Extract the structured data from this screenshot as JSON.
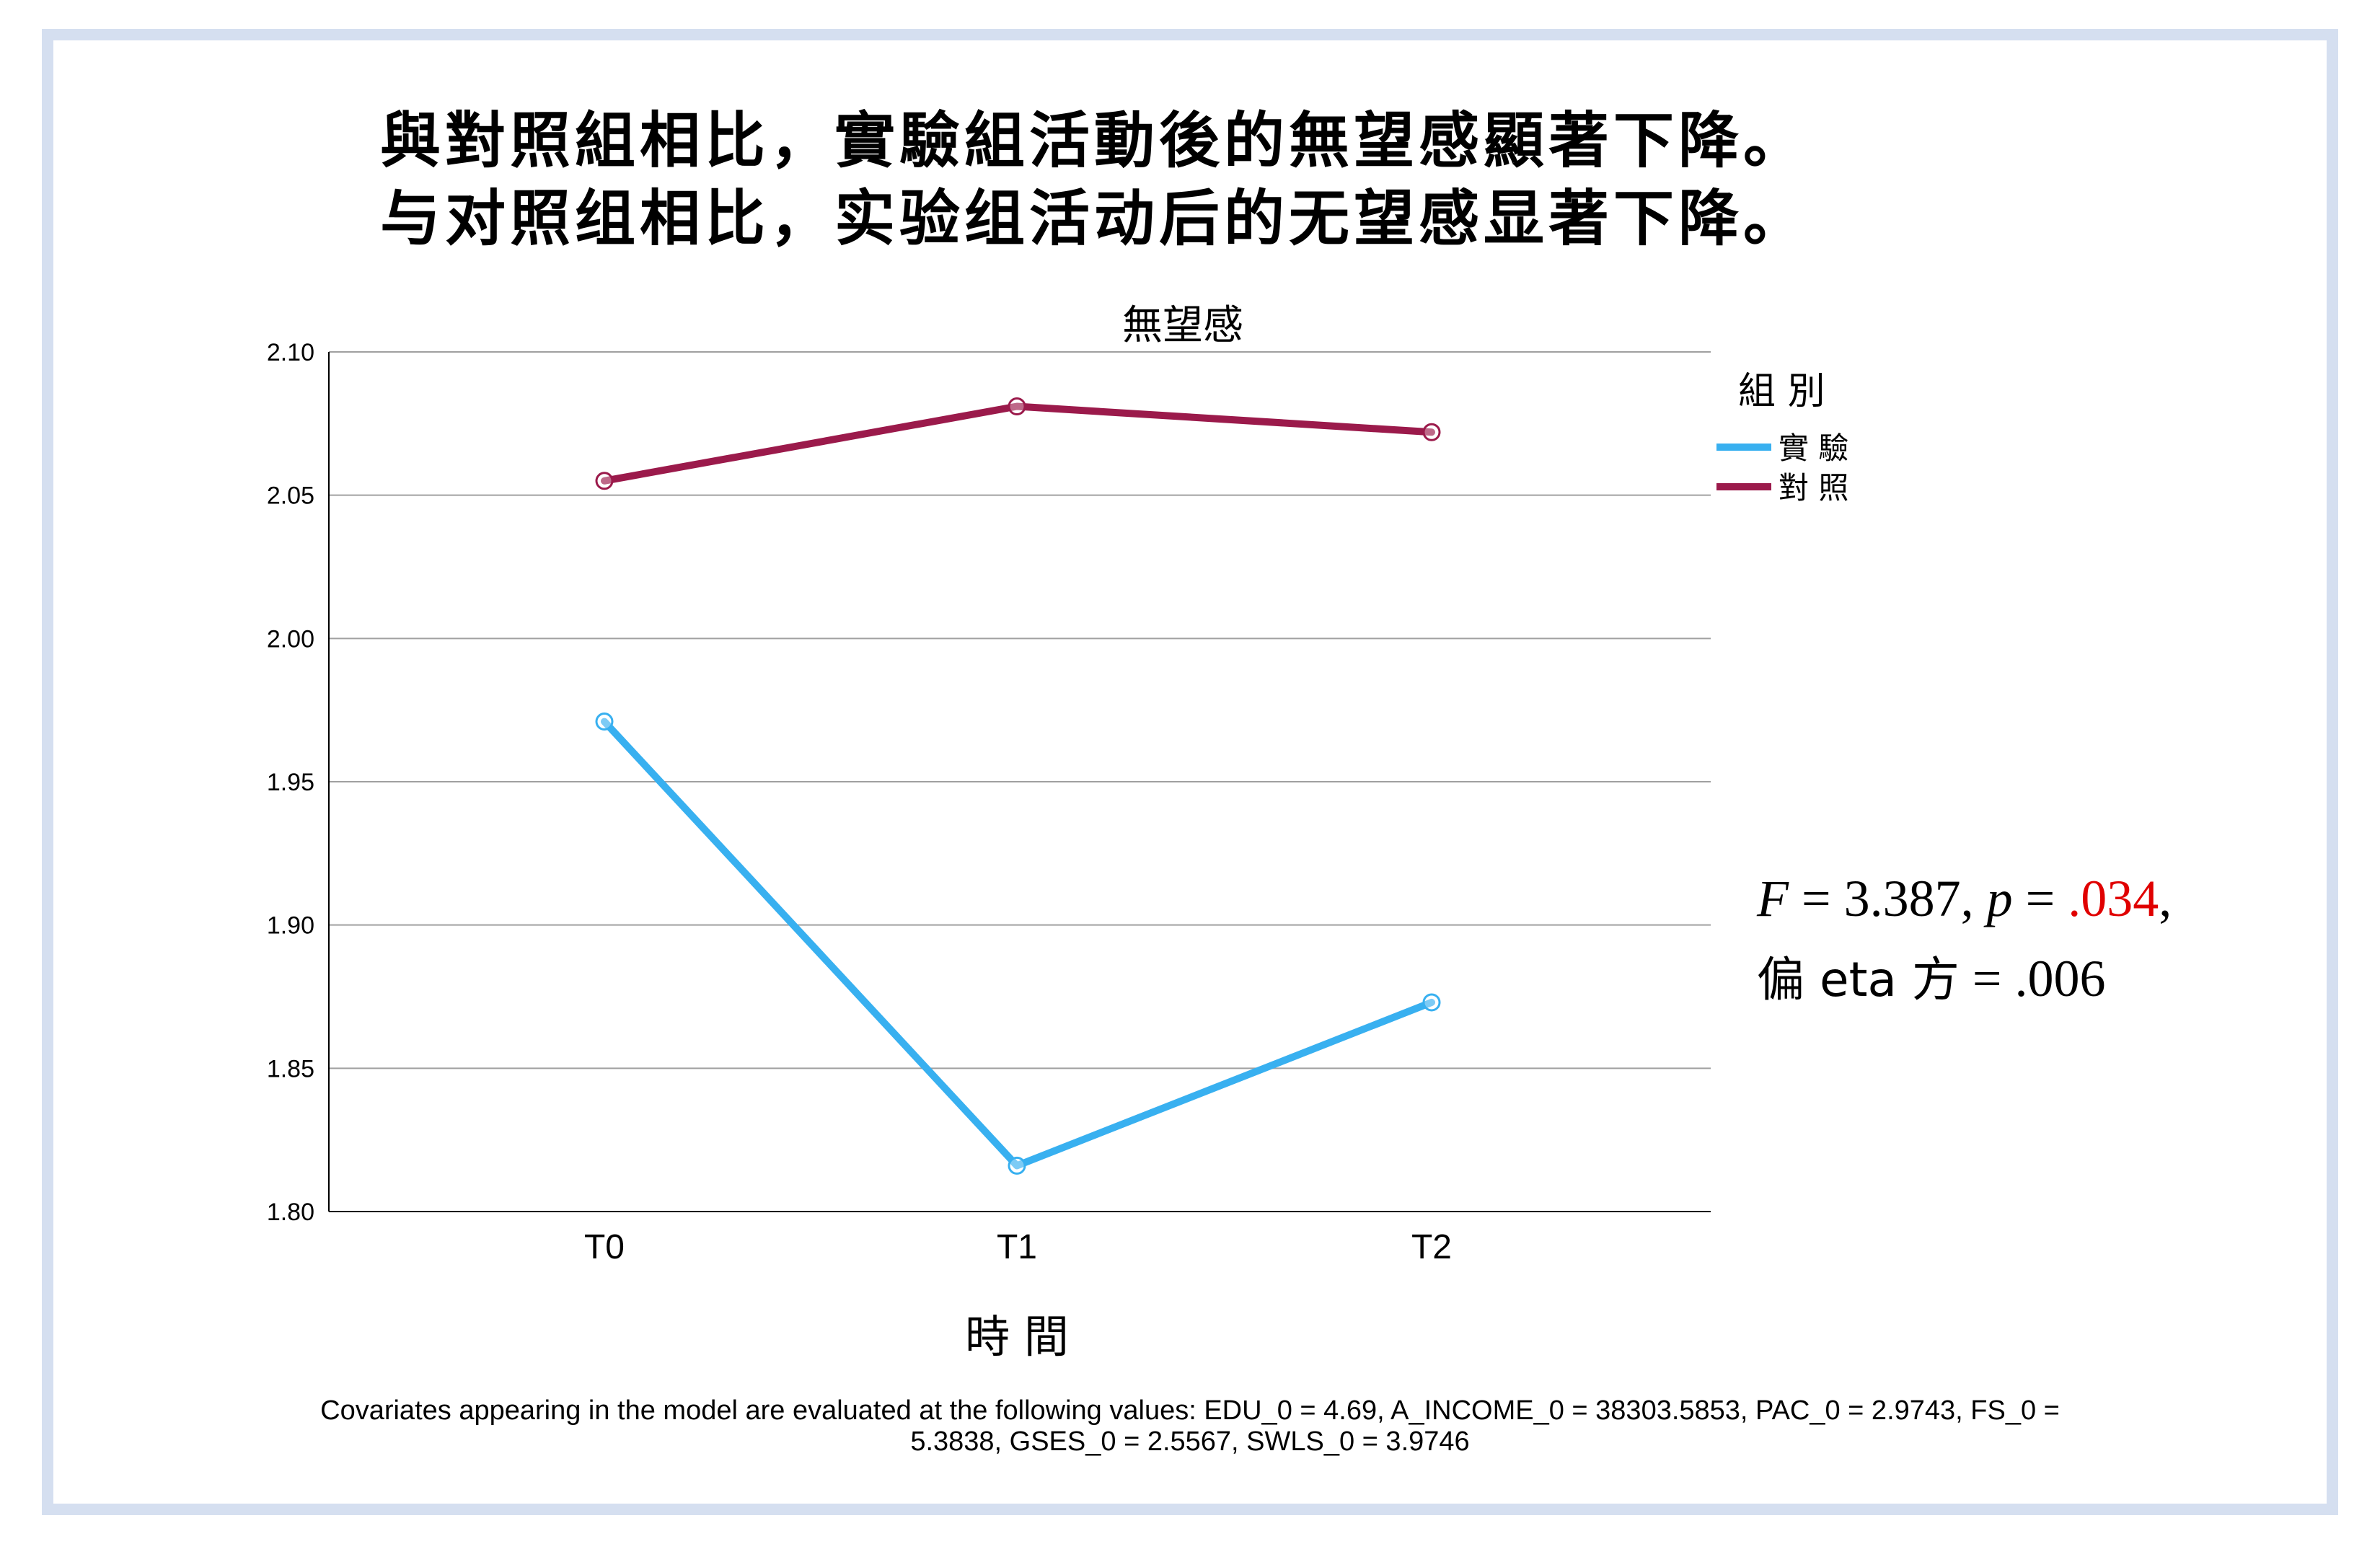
{
  "heading": {
    "traditional": "與對照組相比，實驗組活動後的無望感顯著下降。",
    "simplified": "与对照组相比，实验组活动后的无望感显著下降。"
  },
  "stats": {
    "f_label": "F",
    "f_value": " = 3.387, ",
    "p_label": "p",
    "p_eq": " = ",
    "p_value": ".034",
    "p_tail": ",",
    "eta_label": "偏 eta 方",
    "eta_value": " = .006"
  },
  "note": {
    "line1": "Covariates appearing in the model are evaluated at the following values: EDU_0 = 4.69, A_INCOME_0 = 38303.5853, PAC_0 = 2.9743, FS_0 =",
    "line2": "5.3838, GSES_0 = 2.5567, SWLS_0 = 3.9746"
  },
  "colors": {
    "experimental": "#38b0f0",
    "control": "#9b1a4b",
    "pvalue": "#e00000",
    "frame": "#d5dff0"
  },
  "chart_data": {
    "type": "line",
    "title": "無望感",
    "xlabel": "時 間",
    "ylabel": "",
    "categories": [
      "T0",
      "T1",
      "T2"
    ],
    "ylim": [
      1.8,
      2.1
    ],
    "yticks": [
      "1.80",
      "1.85",
      "1.90",
      "1.95",
      "2.00",
      "2.05",
      "2.10"
    ],
    "grid": true,
    "legend_title": "組 別",
    "legend_position": "top-right",
    "series": [
      {
        "name": "實 驗",
        "color": "#38b0f0",
        "values": [
          1.971,
          1.816,
          1.873
        ]
      },
      {
        "name": "對 照",
        "color": "#9b1a4b",
        "values": [
          2.055,
          2.081,
          2.072
        ]
      }
    ]
  }
}
